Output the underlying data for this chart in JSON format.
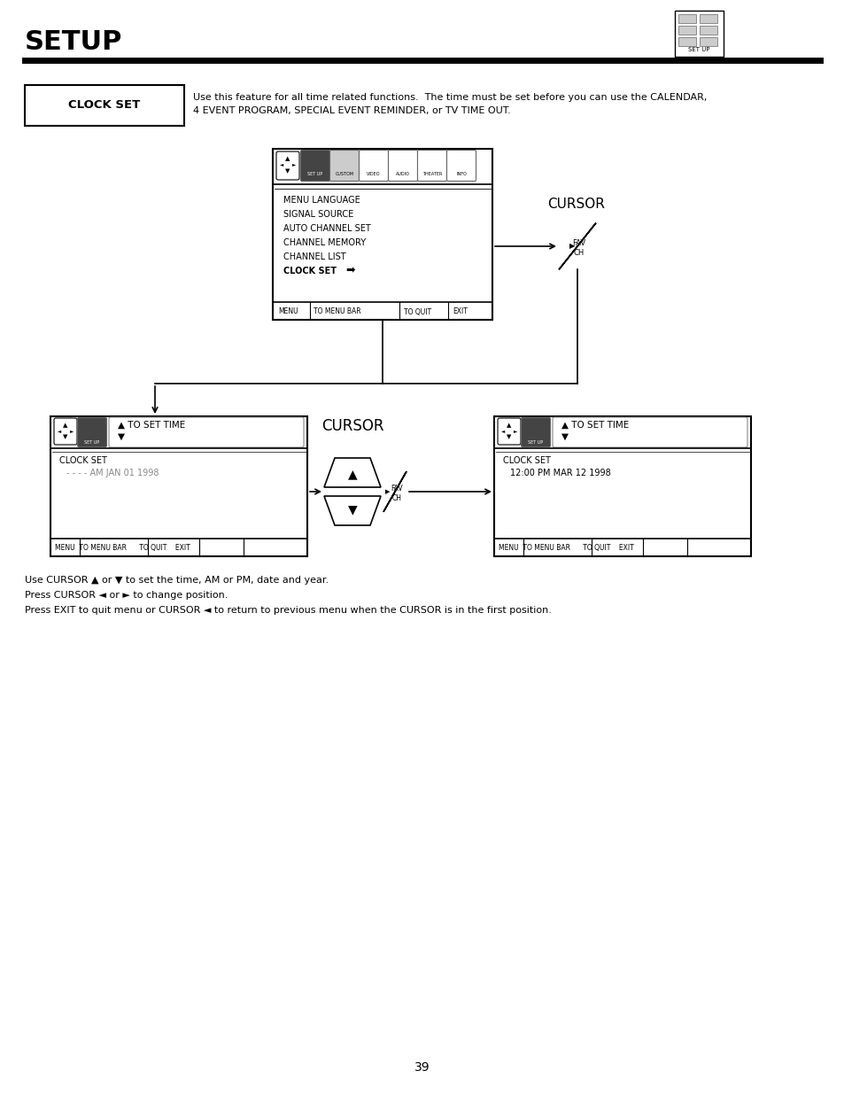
{
  "title": "SETUP",
  "page_number": "39",
  "background_color": "#ffffff",
  "clock_set_label": "CLOCK SET",
  "clock_set_description_line1": "Use this feature for all time related functions.  The time must be set before you can use the CALENDAR,",
  "clock_set_description_line2": "4 EVENT PROGRAM, SPECIAL EVENT REMINDER, or TV TIME OUT.",
  "top_menu_items": [
    "MENU LANGUAGE",
    "SIGNAL SOURCE",
    "AUTO CHANNEL SET",
    "CHANNEL MEMORY",
    "CHANNEL LIST"
  ],
  "top_menu_bold": "CLOCK SET",
  "top_menu_bar": "MENU    TO MENU BAR      TO QUIT     EXIT",
  "cursor_label": "CURSOR",
  "fav_ch_label": "FAV\nCH",
  "bottom_left_header": "TO SET TIME",
  "bottom_left_clock_set": "CLOCK SET",
  "bottom_left_time": "- - - - AM JAN 01 1998",
  "bottom_left_bar": "MENU  TO MENU BAR      TO QUIT    EXIT",
  "bottom_right_header": "TO SET TIME",
  "bottom_right_clock_set": "CLOCK SET",
  "bottom_right_time": "12:00 PM MAR 12 1998",
  "bottom_right_bar": "MENU  TO MENU BAR      TO QUIT    EXIT",
  "instruction1": "Use CURSOR ▲ or ▼ to set the time, AM or PM, date and year.",
  "instruction2": "Press CURSOR ◄ or ► to change position.",
  "instruction3": "Press EXIT to quit menu or CURSOR ◄ to return to previous menu when the CURSOR is in the first position."
}
